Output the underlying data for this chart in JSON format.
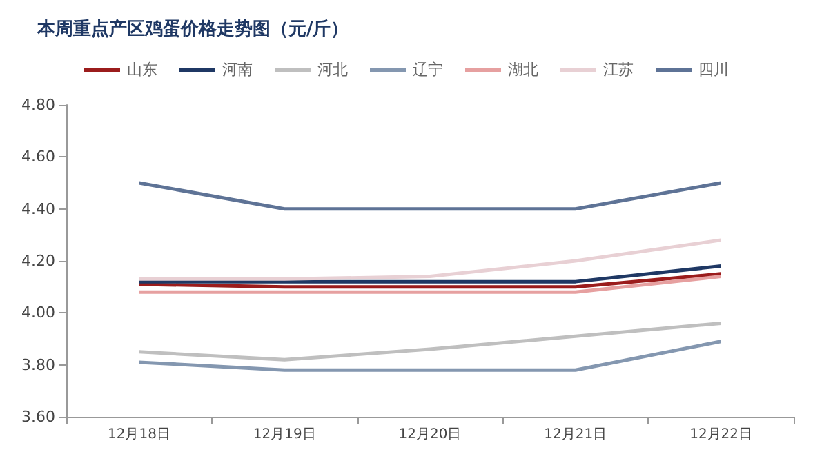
{
  "chart_data": {
    "type": "line",
    "title": "本周重点产区鸡蛋价格走势图（元/斤）",
    "categories": [
      "12月18日",
      "12月19日",
      "12月20日",
      "12月21日",
      "12月22日"
    ],
    "series": [
      {
        "name": "山东",
        "color": "#9b1c1c",
        "values": [
          4.11,
          4.1,
          4.1,
          4.1,
          4.15
        ]
      },
      {
        "name": "河南",
        "color": "#1f3864",
        "values": [
          4.12,
          4.12,
          4.12,
          4.12,
          4.18
        ]
      },
      {
        "name": "河北",
        "color": "#bfbfbf",
        "values": [
          3.85,
          3.82,
          3.86,
          3.91,
          3.96
        ]
      },
      {
        "name": "辽宁",
        "color": "#8497b0",
        "values": [
          3.81,
          3.78,
          3.78,
          3.78,
          3.89
        ]
      },
      {
        "name": "湖北",
        "color": "#e6a0a0",
        "values": [
          4.08,
          4.08,
          4.08,
          4.08,
          4.14
        ]
      },
      {
        "name": "江苏",
        "color": "#e8d0d4",
        "values": [
          4.13,
          4.13,
          4.14,
          4.2,
          4.28
        ]
      },
      {
        "name": "四川",
        "color": "#5e7396",
        "values": [
          4.5,
          4.4,
          4.4,
          4.4,
          4.5
        ]
      }
    ],
    "ylim": [
      3.6,
      4.8
    ],
    "yticks": [
      {
        "value": 3.6,
        "label": "3.60"
      },
      {
        "value": 3.8,
        "label": "3.80"
      },
      {
        "value": 4.0,
        "label": "4.00"
      },
      {
        "value": 4.2,
        "label": "4.20"
      },
      {
        "value": 4.4,
        "label": "4.40"
      },
      {
        "value": 4.6,
        "label": "4.60"
      },
      {
        "value": 4.8,
        "label": "4.80"
      }
    ],
    "grid": false,
    "legend": "top",
    "marker": "none",
    "line_style": "solid"
  }
}
